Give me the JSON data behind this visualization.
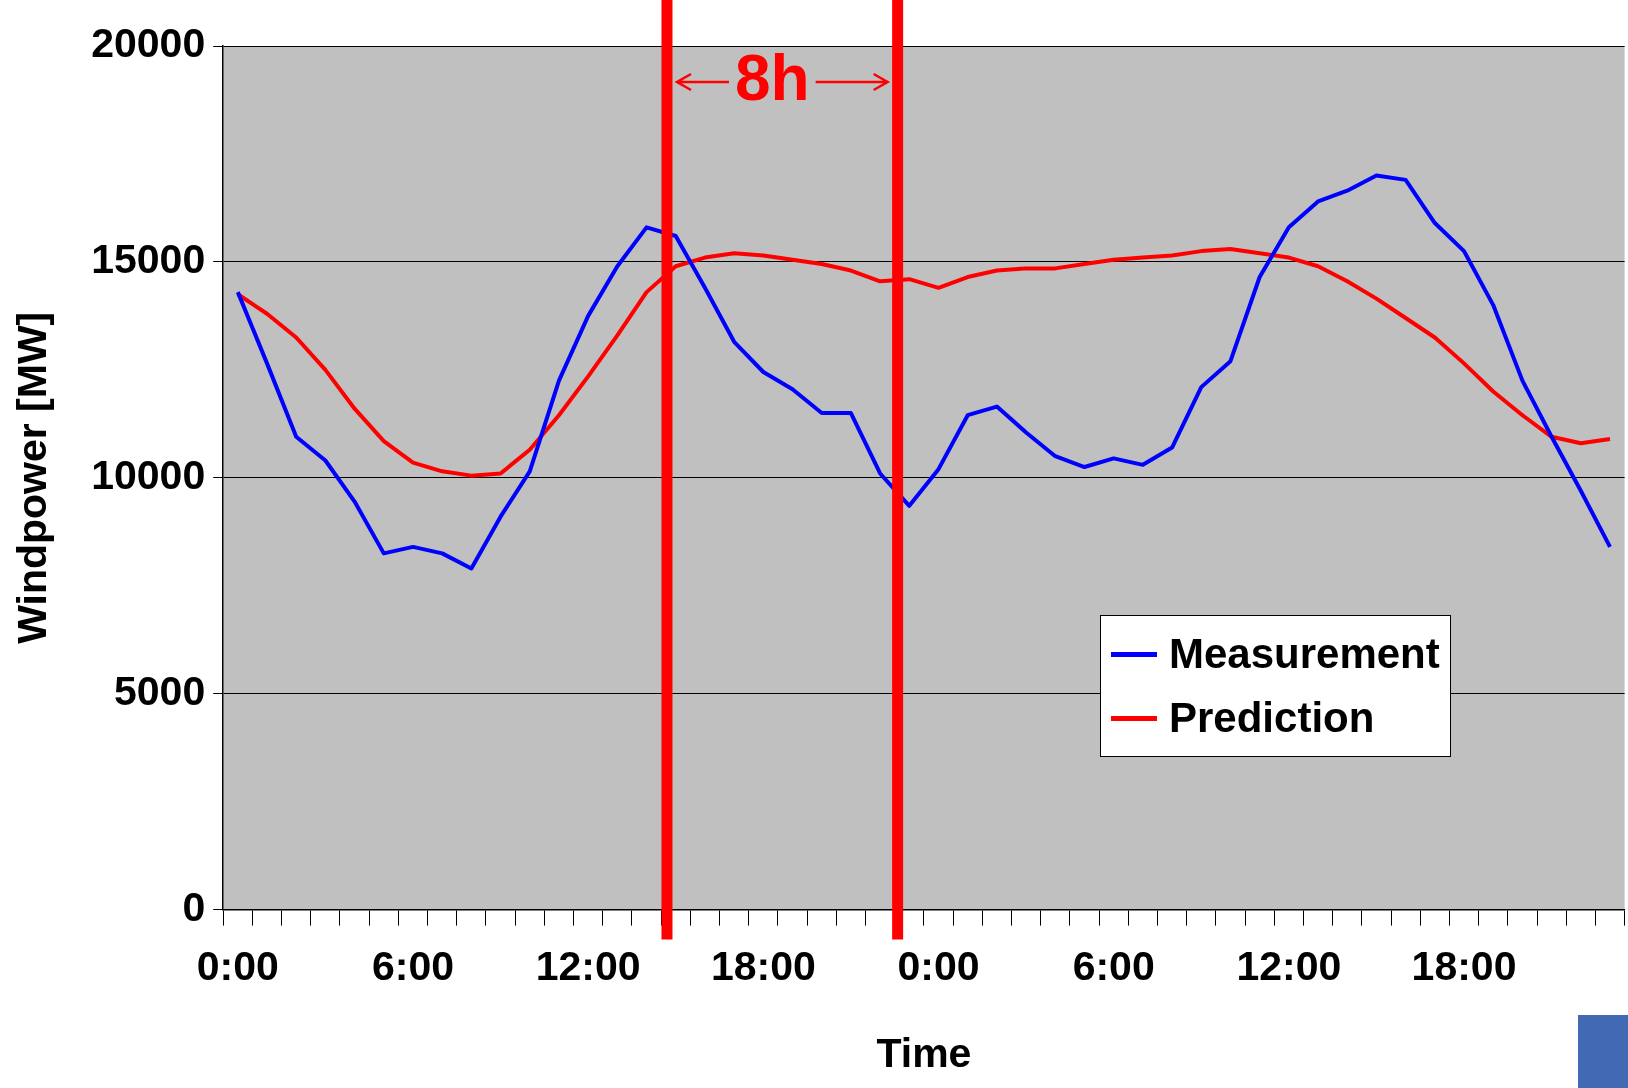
{
  "chart_data": {
    "type": "line",
    "xlabel": "Time",
    "ylabel": "Windpower [MW]",
    "categories": [
      "0:00",
      null,
      null,
      null,
      null,
      null,
      "6:00",
      null,
      null,
      null,
      null,
      null,
      "12:00",
      null,
      null,
      null,
      null,
      null,
      "18:00",
      null,
      null,
      null,
      null,
      null,
      "0:00",
      null,
      null,
      null,
      null,
      null,
      "6:00",
      null,
      null,
      null,
      null,
      null,
      "12:00",
      null,
      null,
      null,
      null,
      null,
      "18:00",
      null,
      null,
      null,
      null,
      null
    ],
    "series": [
      {
        "name": "Measurement",
        "color": "#0000ff",
        "values": [
          14300,
          12650,
          10950,
          10400,
          9450,
          8250,
          8400,
          8250,
          7900,
          9100,
          10150,
          12250,
          13750,
          14900,
          15800,
          15600,
          14400,
          13150,
          12450,
          12050,
          11500,
          11500,
          10100,
          9350,
          10200,
          11450,
          11650,
          11050,
          10500,
          10250,
          10450,
          10300,
          10700,
          12100,
          12700,
          14650,
          15800,
          16400,
          16650,
          17000,
          16900,
          15900,
          15250,
          14000,
          12250,
          10950,
          9700,
          8400
        ]
      },
      {
        "name": "Prediction",
        "color": "#ff0000",
        "values": [
          14250,
          13800,
          13250,
          12500,
          11600,
          10850,
          10350,
          10150,
          10050,
          10100,
          10650,
          11450,
          12350,
          13300,
          14300,
          14900,
          15100,
          15200,
          15150,
          15050,
          14950,
          14800,
          14550,
          14600,
          14400,
          14650,
          14800,
          14850,
          14850,
          14950,
          15050,
          15100,
          15150,
          15250,
          15300,
          15200,
          15100,
          14900,
          14550,
          14150,
          13700,
          13250,
          12650,
          12000,
          11450,
          10950,
          10800,
          10900
        ]
      }
    ],
    "ylim": [
      0,
      20000
    ],
    "yticks": [
      0,
      5000,
      10000,
      15000,
      20000
    ],
    "grid": "y",
    "legend": "bottom right",
    "annotations": [
      "8h"
    ]
  }
}
